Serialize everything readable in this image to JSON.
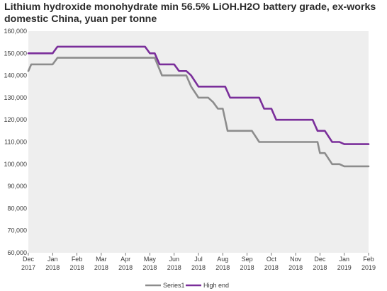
{
  "chart_data": {
    "type": "line",
    "title": "Lithium hydroxide monohydrate min 56.5% LiOH.H2O battery grade, ex-works domestic China, yuan per tonne",
    "xlabel": "",
    "ylabel": "",
    "ylim": [
      60000,
      160000
    ],
    "y_ticks": [
      "60,000",
      "70,000",
      "80,000",
      "90,000",
      "100,000",
      "110,000",
      "120,000",
      "130,000",
      "140,000",
      "150,000",
      "160,000"
    ],
    "x_tick_labels": [
      [
        "Dec",
        "2017"
      ],
      [
        "Jan",
        "2018"
      ],
      [
        "Feb",
        "2018"
      ],
      [
        "Mar",
        "2018"
      ],
      [
        "Apr",
        "2018"
      ],
      [
        "May",
        "2018"
      ],
      [
        "Jun",
        "2018"
      ],
      [
        "Jul",
        "2018"
      ],
      [
        "Aug",
        "2018"
      ],
      [
        "Sep",
        "2018"
      ],
      [
        "Oct",
        "2018"
      ],
      [
        "Nov",
        "2018"
      ],
      [
        "Dec",
        "2018"
      ],
      [
        "Jan",
        "2019"
      ],
      [
        "Feb",
        "2019"
      ]
    ],
    "grid": false,
    "legend_position": "bottom",
    "series": [
      {
        "name": "Series1",
        "color": "#8c8c8c",
        "x": [
          0,
          0.12,
          0.25,
          0.5,
          1.0,
          1.2,
          1.5,
          2.0,
          3.0,
          4.0,
          5.0,
          5.2,
          5.5,
          6.0,
          6.5,
          6.7,
          7.0,
          7.2,
          7.4,
          7.6,
          7.8,
          8.0,
          8.2,
          8.4,
          9.0,
          9.2,
          9.5,
          10.0,
          10.5,
          11.0,
          11.5,
          11.7,
          11.9,
          12.0,
          12.2,
          12.5,
          12.8,
          13.0,
          13.5,
          14.0
        ],
        "values": [
          142000,
          145000,
          145000,
          145000,
          145000,
          148000,
          148000,
          148000,
          148000,
          148000,
          148000,
          148000,
          140000,
          140000,
          140000,
          135000,
          130000,
          130000,
          130000,
          128000,
          125000,
          125000,
          115000,
          115000,
          115000,
          115000,
          110000,
          110000,
          110000,
          110000,
          110000,
          110000,
          110000,
          105000,
          105000,
          100000,
          100000,
          99000,
          99000,
          99000
        ]
      },
      {
        "name": "High end",
        "color": "#7a2e9a",
        "x": [
          0,
          0.5,
          1.0,
          1.2,
          1.5,
          2.0,
          3.0,
          4.0,
          4.8,
          5.0,
          5.2,
          5.4,
          5.6,
          6.0,
          6.2,
          6.5,
          6.7,
          7.0,
          7.5,
          8.0,
          8.1,
          8.3,
          8.5,
          9.0,
          9.5,
          9.7,
          10.0,
          10.2,
          10.5,
          11.0,
          11.5,
          11.7,
          11.9,
          12.0,
          12.2,
          12.5,
          12.8,
          13.0,
          13.5,
          14.0
        ],
        "values": [
          150000,
          150000,
          150000,
          153000,
          153000,
          153000,
          153000,
          153000,
          153000,
          150000,
          150000,
          145000,
          145000,
          145000,
          142000,
          142000,
          140000,
          135000,
          135000,
          135000,
          135000,
          130000,
          130000,
          130000,
          130000,
          125000,
          125000,
          120000,
          120000,
          120000,
          120000,
          120000,
          115000,
          115000,
          115000,
          110000,
          110000,
          109000,
          109000,
          109000
        ]
      }
    ]
  }
}
